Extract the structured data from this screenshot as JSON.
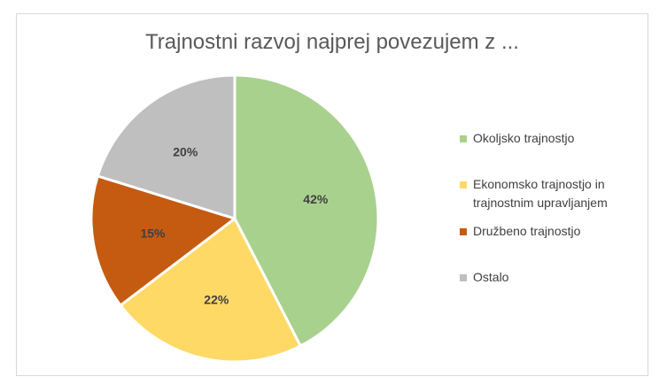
{
  "chart_data": {
    "type": "pie",
    "title": "Trajnostni razvoj najprej povezujem z ...",
    "categories": [
      "Okoljsko trajnostjo",
      "Ekonomsko trajnostjo in trajnostnim upravljanjem",
      "Družbeno trajnostjo",
      "Ostalo"
    ],
    "values": [
      42,
      22,
      15,
      20
    ],
    "data_labels": [
      "42%",
      "22%",
      "15%",
      "20%"
    ],
    "colors": [
      "#a9d18e",
      "#ffd966",
      "#c55a11",
      "#bfbfbf"
    ],
    "legend_position": "right",
    "start_angle": "12 o'clock",
    "direction": "clockwise"
  }
}
